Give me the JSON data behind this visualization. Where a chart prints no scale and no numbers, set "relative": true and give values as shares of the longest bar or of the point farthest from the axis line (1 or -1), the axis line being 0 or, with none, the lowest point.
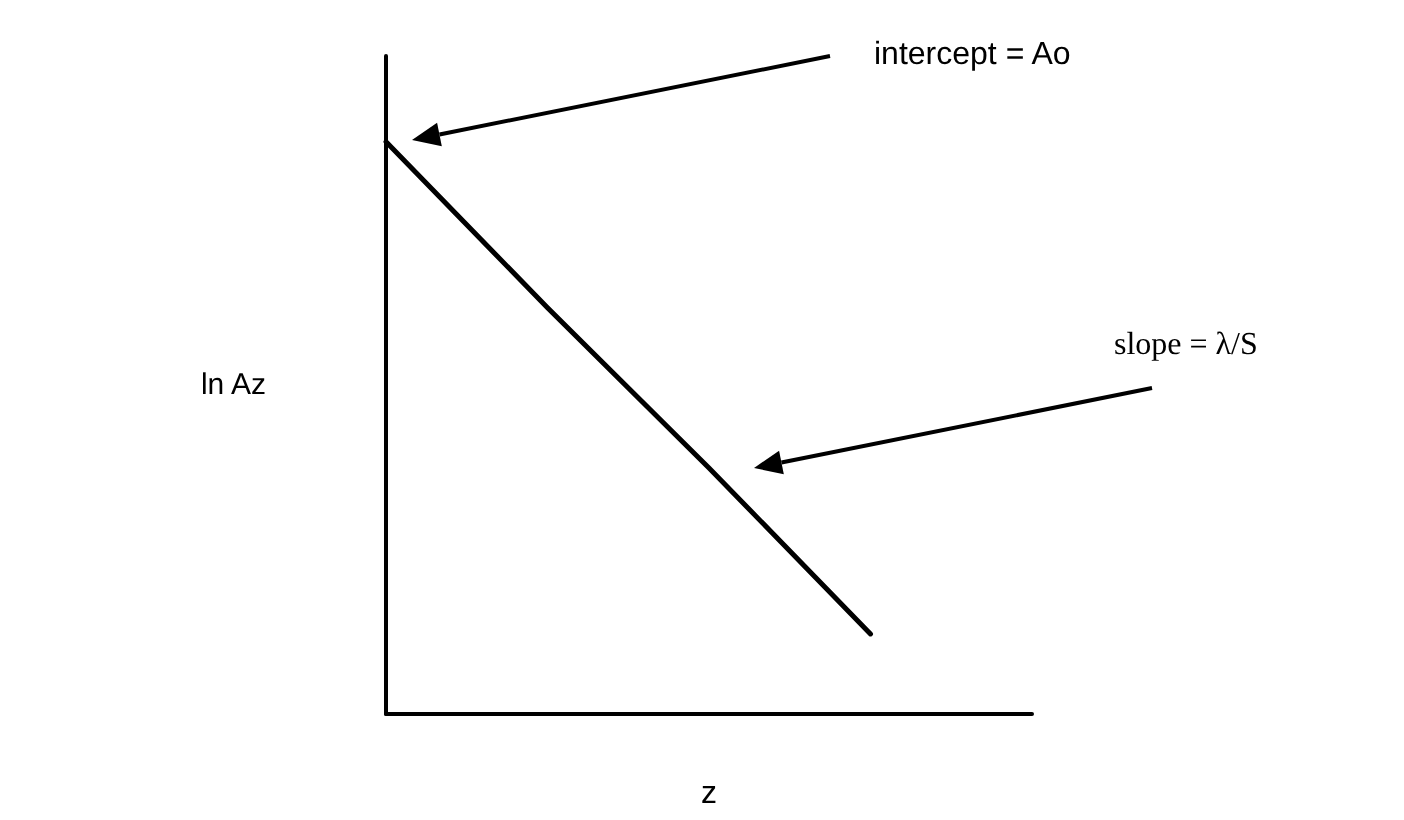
{
  "chart_data": {
    "type": "line",
    "relative": true,
    "xlabel": "z",
    "ylabel": "ln Az",
    "categories": [
      null,
      null,
      null,
      null,
      null
    ],
    "series": [
      {
        "color": "#000000",
        "values": [
          1,
          0.71,
          0.43,
          0.14,
          null
        ]
      }
    ],
    "marker": "none",
    "line_style": "solid",
    "annotations": [
      "intercept = Ao",
      "slope = λ/S"
    ]
  }
}
